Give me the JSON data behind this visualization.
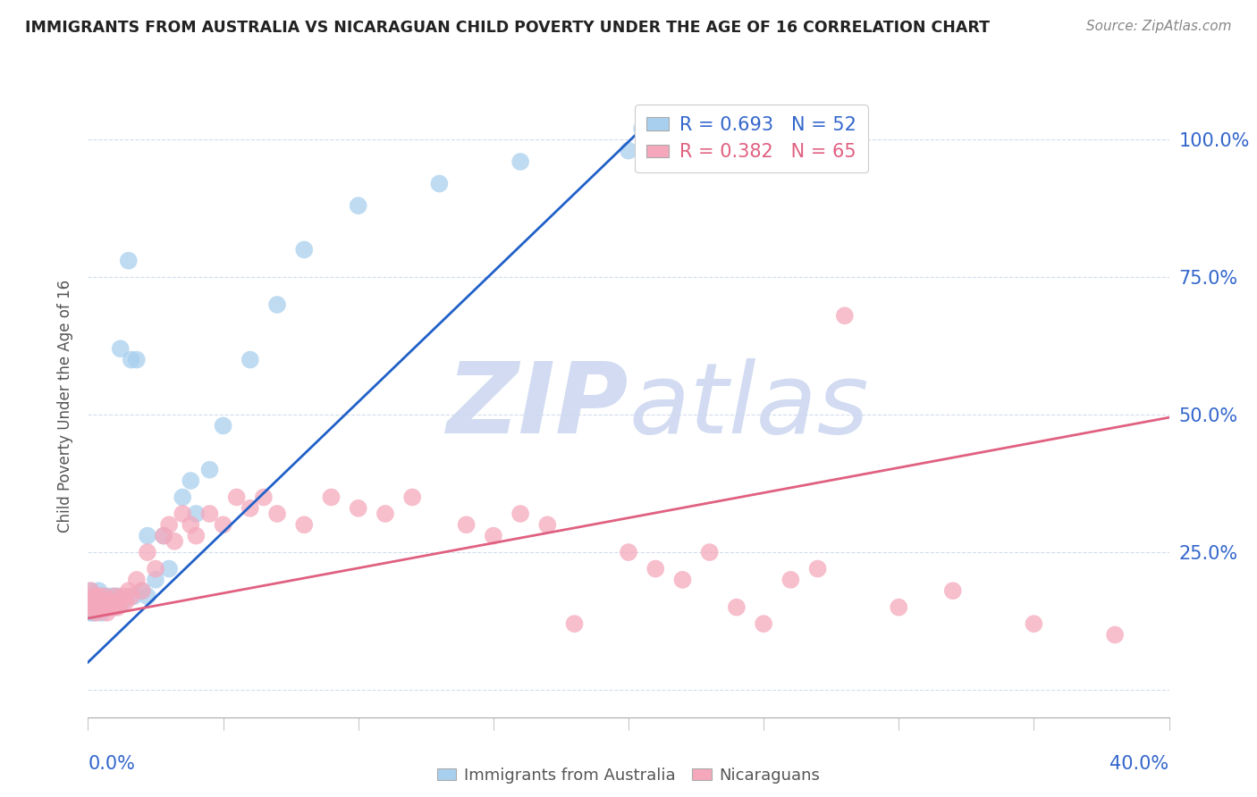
{
  "title": "IMMIGRANTS FROM AUSTRALIA VS NICARAGUAN CHILD POVERTY UNDER THE AGE OF 16 CORRELATION CHART",
  "source": "Source: ZipAtlas.com",
  "blue_label": "Immigrants from Australia",
  "pink_label": "Nicaraguans",
  "ylabel": "Child Poverty Under the Age of 16",
  "blue_R": 0.693,
  "blue_N": 52,
  "pink_R": 0.382,
  "pink_N": 65,
  "blue_color": "#a8d0ee",
  "pink_color": "#f5a8bc",
  "blue_line_color": "#2060c8",
  "pink_line_color": "#e06080",
  "watermark_color": "#cdd8f0",
  "grid_color": "#c8d4e8",
  "background_color": "#ffffff",
  "xlim": [
    0.0,
    0.4
  ],
  "ylim": [
    -0.05,
    1.08
  ],
  "blue_line_x": [
    0.0,
    0.205
  ],
  "blue_line_y": [
    0.05,
    1.02
  ],
  "pink_line_x": [
    0.0,
    0.4
  ],
  "pink_line_y": [
    0.13,
    0.495
  ],
  "blue_x": [
    0.001,
    0.001,
    0.001,
    0.001,
    0.002,
    0.002,
    0.002,
    0.002,
    0.003,
    0.003,
    0.003,
    0.004,
    0.004,
    0.004,
    0.005,
    0.005,
    0.005,
    0.006,
    0.006,
    0.007,
    0.007,
    0.008,
    0.008,
    0.009,
    0.01,
    0.01,
    0.011,
    0.012,
    0.013,
    0.015,
    0.016,
    0.017,
    0.018,
    0.02,
    0.022,
    0.022,
    0.025,
    0.028,
    0.03,
    0.035,
    0.038,
    0.04,
    0.045,
    0.05,
    0.06,
    0.07,
    0.08,
    0.1,
    0.13,
    0.16,
    0.2,
    0.205
  ],
  "blue_y": [
    0.15,
    0.14,
    0.16,
    0.18,
    0.14,
    0.15,
    0.16,
    0.17,
    0.15,
    0.16,
    0.17,
    0.15,
    0.16,
    0.18,
    0.14,
    0.15,
    0.17,
    0.15,
    0.16,
    0.15,
    0.17,
    0.15,
    0.16,
    0.17,
    0.15,
    0.16,
    0.17,
    0.62,
    0.16,
    0.78,
    0.6,
    0.17,
    0.6,
    0.18,
    0.17,
    0.28,
    0.2,
    0.28,
    0.22,
    0.35,
    0.38,
    0.32,
    0.4,
    0.48,
    0.6,
    0.7,
    0.8,
    0.88,
    0.92,
    0.96,
    0.98,
    1.02
  ],
  "pink_x": [
    0.001,
    0.001,
    0.001,
    0.002,
    0.002,
    0.003,
    0.003,
    0.004,
    0.004,
    0.005,
    0.005,
    0.006,
    0.006,
    0.007,
    0.007,
    0.008,
    0.008,
    0.009,
    0.01,
    0.01,
    0.011,
    0.012,
    0.013,
    0.014,
    0.015,
    0.016,
    0.018,
    0.02,
    0.022,
    0.025,
    0.028,
    0.03,
    0.032,
    0.035,
    0.038,
    0.04,
    0.045,
    0.05,
    0.055,
    0.06,
    0.065,
    0.07,
    0.08,
    0.09,
    0.1,
    0.11,
    0.12,
    0.14,
    0.15,
    0.16,
    0.17,
    0.18,
    0.2,
    0.21,
    0.22,
    0.23,
    0.24,
    0.25,
    0.26,
    0.27,
    0.28,
    0.3,
    0.32,
    0.35,
    0.38
  ],
  "pink_y": [
    0.15,
    0.16,
    0.18,
    0.15,
    0.17,
    0.14,
    0.16,
    0.15,
    0.17,
    0.15,
    0.16,
    0.15,
    0.17,
    0.16,
    0.14,
    0.15,
    0.16,
    0.15,
    0.16,
    0.17,
    0.15,
    0.16,
    0.17,
    0.16,
    0.18,
    0.17,
    0.2,
    0.18,
    0.25,
    0.22,
    0.28,
    0.3,
    0.27,
    0.32,
    0.3,
    0.28,
    0.32,
    0.3,
    0.35,
    0.33,
    0.35,
    0.32,
    0.3,
    0.35,
    0.33,
    0.32,
    0.35,
    0.3,
    0.28,
    0.32,
    0.3,
    0.12,
    0.25,
    0.22,
    0.2,
    0.25,
    0.15,
    0.12,
    0.2,
    0.22,
    0.68,
    0.15,
    0.18,
    0.12,
    0.1
  ]
}
